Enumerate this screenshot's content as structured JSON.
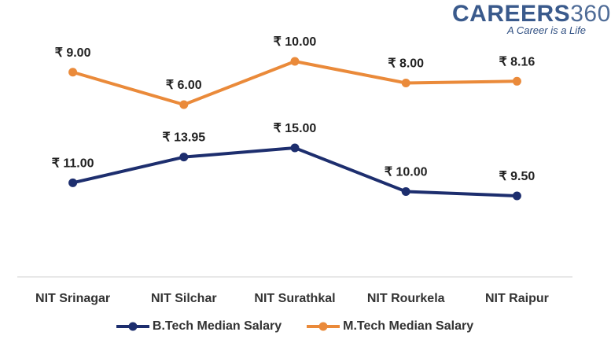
{
  "brand": {
    "name": "CAREERS",
    "number": "360",
    "tagline": "A Career is a Life"
  },
  "colors": {
    "btech": "#1d2e6e",
    "mtech": "#ea8a3a",
    "axis": "#d0d0d0",
    "label": "#222222"
  },
  "chart_data": {
    "type": "line",
    "title": "",
    "xlabel": "",
    "ylabel": "",
    "categories": [
      "NIT Srinagar",
      "NIT Silchar",
      "NIT Surathkal",
      "NIT Rourkela",
      "NIT Raipur"
    ],
    "series": [
      {
        "name": "B.Tech Median Salary",
        "values": [
          11.0,
          13.95,
          15.0,
          10.0,
          9.5
        ],
        "labels": [
          "₹ 11.00",
          "₹ 13.95",
          "₹ 15.00",
          "₹ 10.00",
          "₹ 9.50"
        ],
        "color": "#1d2e6e"
      },
      {
        "name": "M.Tech Median Salary",
        "values": [
          9.0,
          6.0,
          10.0,
          8.0,
          8.16
        ],
        "labels": [
          "₹ 9.00",
          "₹ 6.00",
          "₹ 10.00",
          "₹ 8.00",
          "₹ 8.16"
        ],
        "color": "#ea8a3a"
      }
    ],
    "grid": false,
    "legend": "bottom"
  }
}
